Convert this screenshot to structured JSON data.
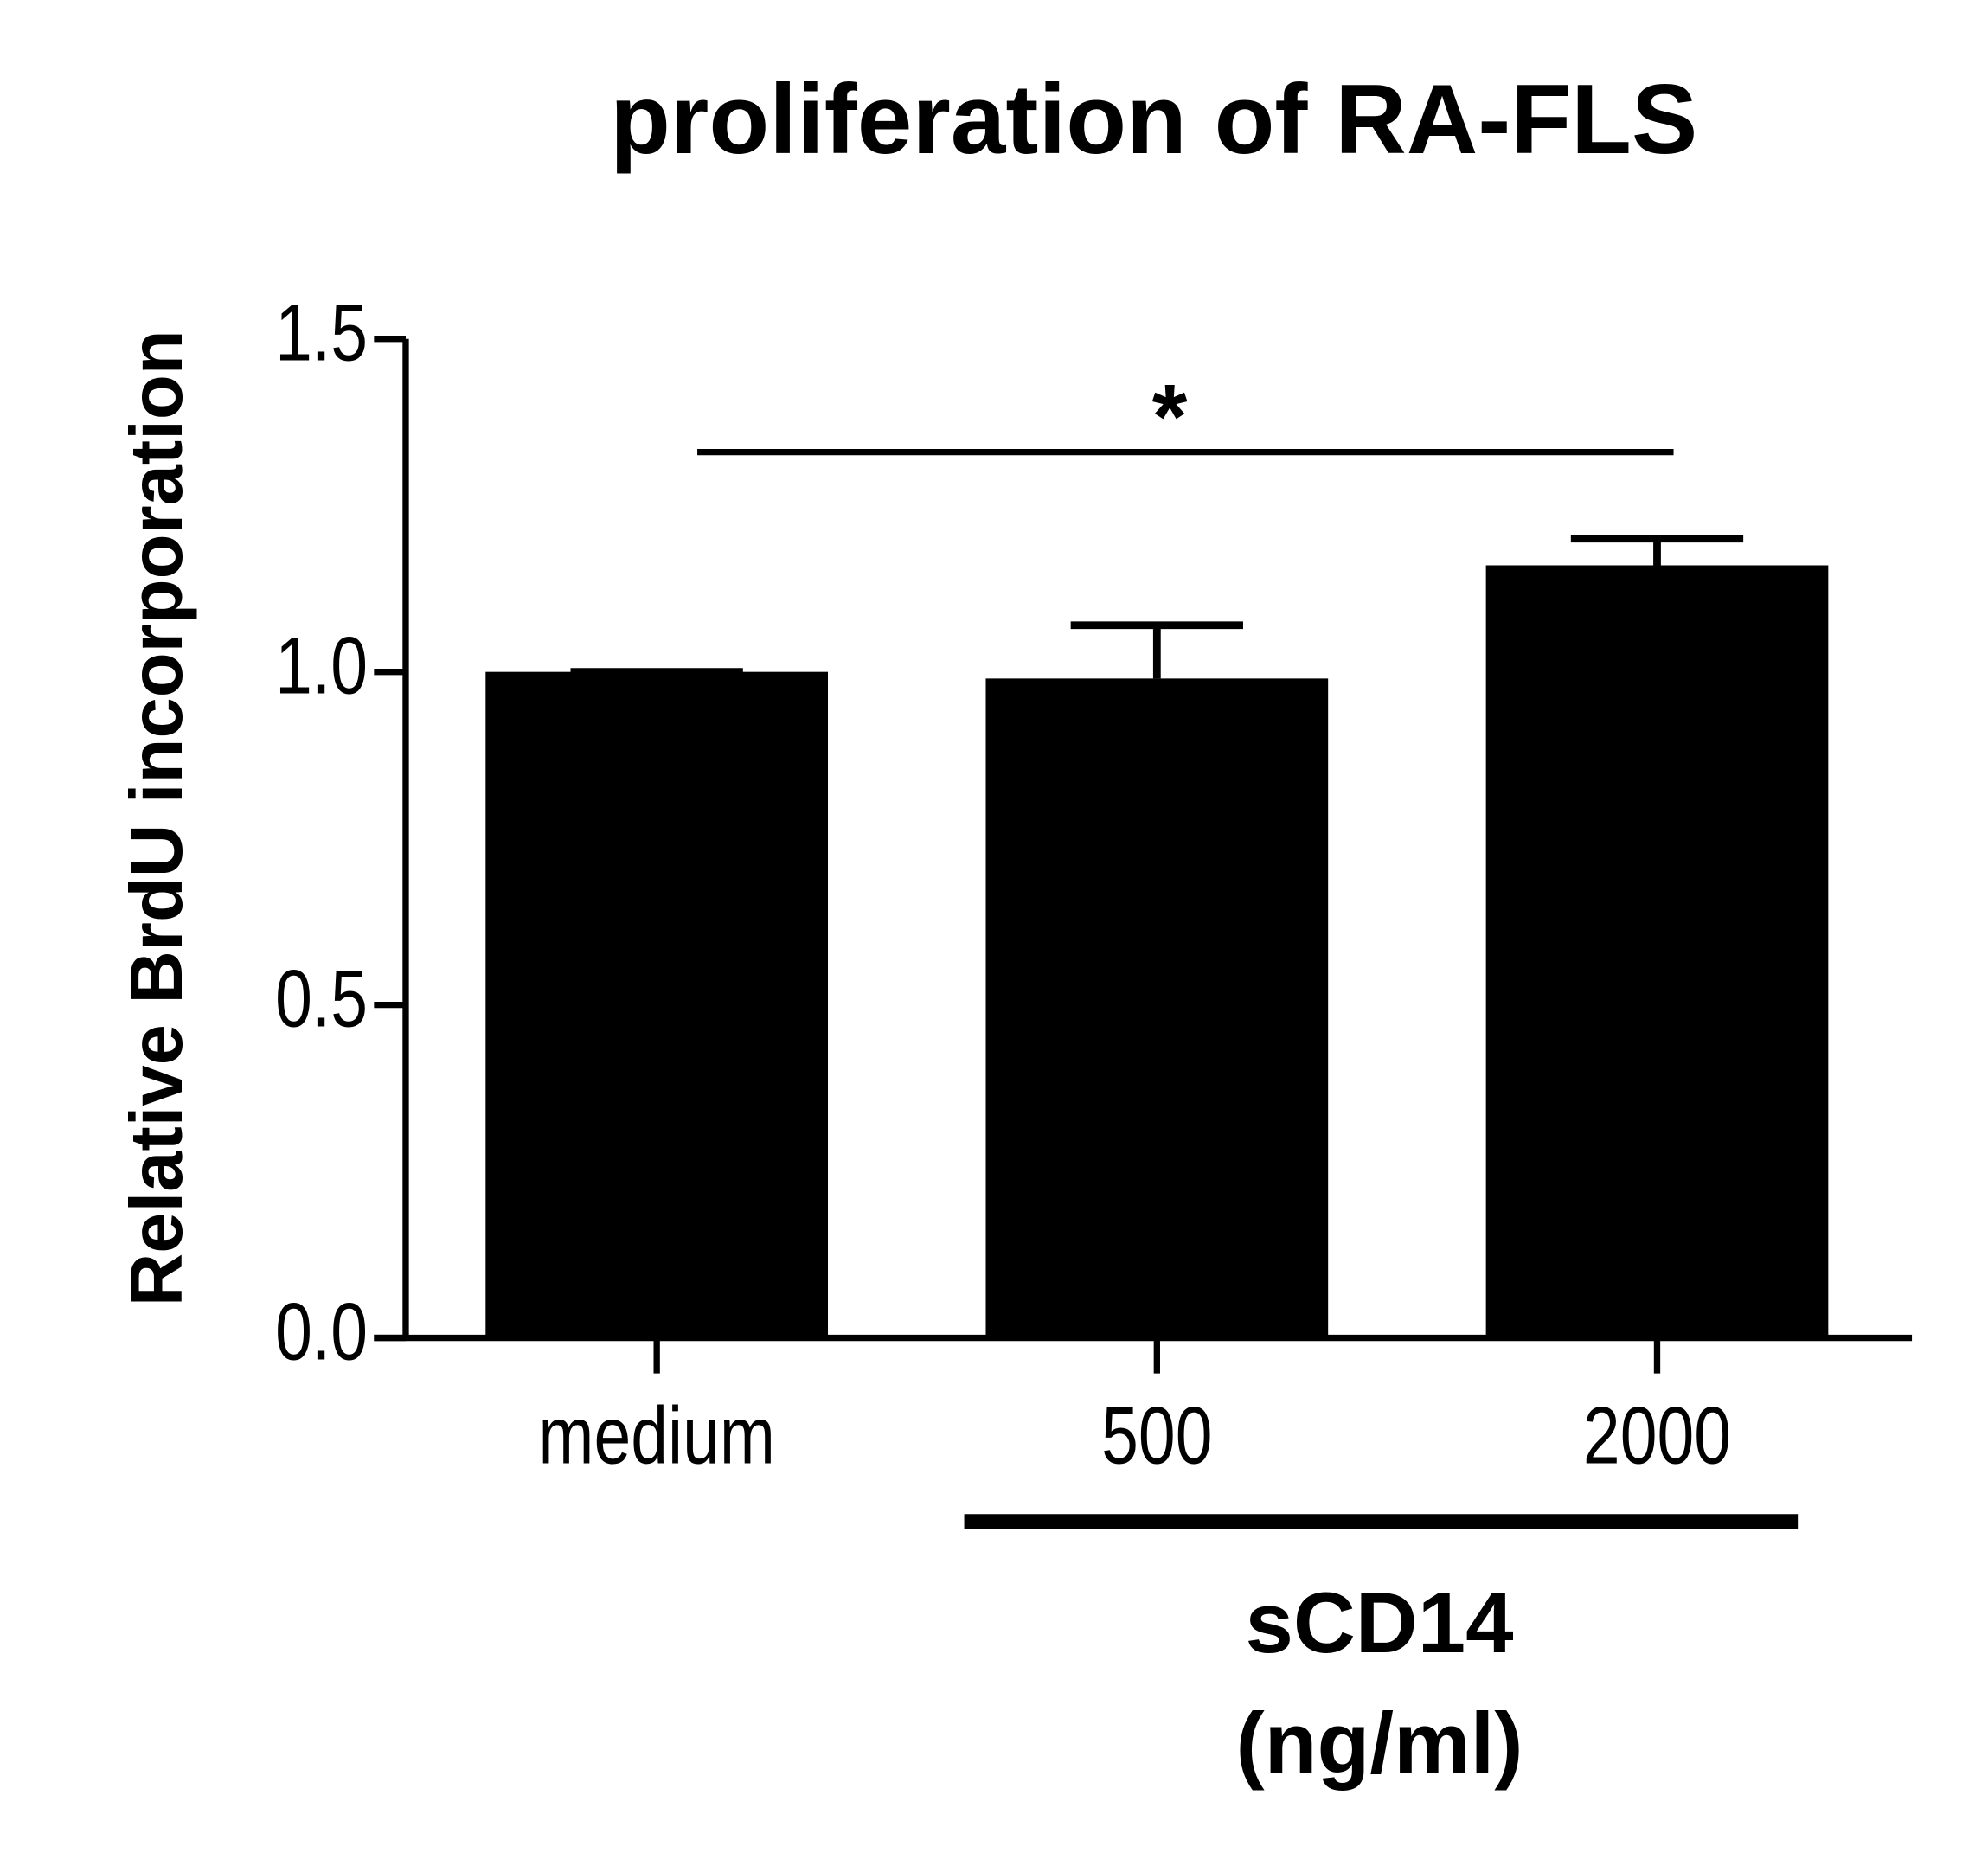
{
  "chart_data": {
    "type": "bar",
    "title": "proliferation of RA-FLS",
    "y_label": "Relative BrdU incorporation",
    "x_group_label": [
      "sCD14",
      "(ng/ml)"
    ],
    "categories": [
      "medium",
      "500",
      "2000"
    ],
    "values": [
      1.0,
      0.99,
      1.16
    ],
    "errors": [
      0,
      0.08,
      0.04
    ],
    "color": "#000000",
    "ylim": [
      0,
      1.5
    ],
    "yticks": [
      {
        "value": 0,
        "label": "0.0"
      },
      {
        "value": 0.5,
        "label": "0.5"
      },
      {
        "value": 1,
        "label": "1.0"
      },
      {
        "value": 1.5,
        "label": "1.5"
      }
    ],
    "significance": {
      "text": "*",
      "y": 1.33
    },
    "grid": false
  }
}
